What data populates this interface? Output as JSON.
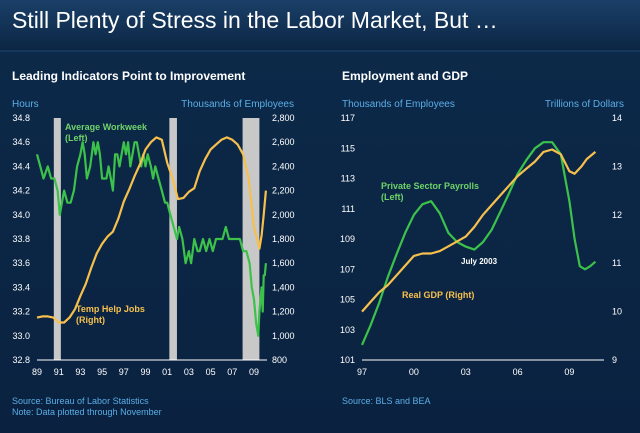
{
  "page": {
    "title": "Still Plenty of Stress in the Labor Market, But …",
    "colors": {
      "background": "#0b2543",
      "green": "#3cc24a",
      "gold": "#f7c04d",
      "blue_text": "#5aaee8",
      "recession": "#c8c8c8"
    }
  },
  "chart_data": [
    {
      "type": "line",
      "title": "Leading Indicators Point to Improvement",
      "left_axis_unit": "Hours",
      "right_axis_unit": "Thousands of Employees",
      "left_ylim": [
        32.8,
        34.8
      ],
      "right_ylim": [
        800,
        2800
      ],
      "left_ticks": [
        "34.8",
        "34.6",
        "34.4",
        "34.2",
        "34.0",
        "33.8",
        "33.6",
        "33.4",
        "33.2",
        "33.0",
        "32.8"
      ],
      "right_ticks": [
        "2,800",
        "2,600",
        "2,400",
        "2,200",
        "2,000",
        "1,800",
        "1,600",
        "1,400",
        "1,200",
        "1,000",
        "800"
      ],
      "x_ticks": [
        "89",
        "91",
        "93",
        "95",
        "97",
        "99",
        "01",
        "03",
        "05",
        "07",
        "09"
      ],
      "xlim": [
        1989,
        2010.2
      ],
      "recessions": [
        [
          1990.55,
          1991.2
        ],
        [
          2001.2,
          2001.9
        ],
        [
          2007.95,
          2009.5
        ]
      ],
      "series": [
        {
          "name": "Average Workweek (Left)",
          "label_line1": "Average Workweek",
          "label_line2": "(Left)",
          "axis": "left",
          "color": "#3cc24a",
          "points": [
            [
              1989.0,
              34.5
            ],
            [
              1989.3,
              34.4
            ],
            [
              1989.6,
              34.3
            ],
            [
              1990.0,
              34.4
            ],
            [
              1990.3,
              34.3
            ],
            [
              1990.6,
              34.3
            ],
            [
              1990.9,
              34.2
            ],
            [
              1991.1,
              34.0
            ],
            [
              1991.5,
              34.2
            ],
            [
              1991.8,
              34.1
            ],
            [
              1992.1,
              34.1
            ],
            [
              1992.4,
              34.2
            ],
            [
              1992.7,
              34.4
            ],
            [
              1993.0,
              34.5
            ],
            [
              1993.2,
              34.6
            ],
            [
              1993.4,
              34.5
            ],
            [
              1993.6,
              34.3
            ],
            [
              1993.9,
              34.4
            ],
            [
              1994.2,
              34.6
            ],
            [
              1994.4,
              34.5
            ],
            [
              1994.6,
              34.6
            ],
            [
              1994.8,
              34.5
            ],
            [
              1995.0,
              34.3
            ],
            [
              1995.2,
              34.3
            ],
            [
              1995.4,
              34.3
            ],
            [
              1995.6,
              34.4
            ],
            [
              1995.8,
              34.3
            ],
            [
              1996.0,
              34.2
            ],
            [
              1996.2,
              34.5
            ],
            [
              1996.4,
              34.5
            ],
            [
              1996.6,
              34.4
            ],
            [
              1996.8,
              34.5
            ],
            [
              1997.0,
              34.6
            ],
            [
              1997.2,
              34.5
            ],
            [
              1997.4,
              34.6
            ],
            [
              1997.6,
              34.4
            ],
            [
              1997.8,
              34.5
            ],
            [
              1998.0,
              34.6
            ],
            [
              1998.2,
              34.6
            ],
            [
              1998.4,
              34.5
            ],
            [
              1998.6,
              34.4
            ],
            [
              1998.8,
              34.5
            ],
            [
              1999.0,
              34.4
            ],
            [
              1999.2,
              34.5
            ],
            [
              1999.5,
              34.4
            ],
            [
              1999.7,
              34.3
            ],
            [
              1999.9,
              34.4
            ],
            [
              2000.2,
              34.3
            ],
            [
              2000.5,
              34.2
            ],
            [
              2000.8,
              34.1
            ],
            [
              2001.0,
              34.1
            ],
            [
              2001.3,
              34.0
            ],
            [
              2001.6,
              33.9
            ],
            [
              2001.9,
              33.8
            ],
            [
              2002.1,
              33.9
            ],
            [
              2002.4,
              33.8
            ],
            [
              2002.7,
              33.6
            ],
            [
              2003.0,
              33.7
            ],
            [
              2003.2,
              33.6
            ],
            [
              2003.5,
              33.8
            ],
            [
              2003.8,
              33.7
            ],
            [
              2004.0,
              33.7
            ],
            [
              2004.3,
              33.8
            ],
            [
              2004.6,
              33.7
            ],
            [
              2004.9,
              33.8
            ],
            [
              2005.2,
              33.7
            ],
            [
              2005.5,
              33.8
            ],
            [
              2005.8,
              33.8
            ],
            [
              2006.1,
              33.8
            ],
            [
              2006.4,
              33.9
            ],
            [
              2006.7,
              33.8
            ],
            [
              2007.0,
              33.8
            ],
            [
              2007.3,
              33.8
            ],
            [
              2007.7,
              33.8
            ],
            [
              2008.0,
              33.7
            ],
            [
              2008.3,
              33.7
            ],
            [
              2008.6,
              33.6
            ],
            [
              2008.8,
              33.4
            ],
            [
              2009.0,
              33.3
            ],
            [
              2009.2,
              33.1
            ],
            [
              2009.4,
              33.0
            ],
            [
              2009.5,
              33.2
            ],
            [
              2009.7,
              33.4
            ],
            [
              2009.8,
              33.2
            ],
            [
              2009.9,
              33.5
            ],
            [
              2010.0,
              33.5
            ],
            [
              2010.1,
              33.6
            ]
          ]
        },
        {
          "name": "Temp Help Jobs (Right)",
          "label_line1": "Temp Help Jobs",
          "label_line2": "(Right)",
          "axis": "right",
          "color": "#f7c04d",
          "points": [
            [
              1989.0,
              1150
            ],
            [
              1989.5,
              1160
            ],
            [
              1990.0,
              1160
            ],
            [
              1990.5,
              1150
            ],
            [
              1991.0,
              1110
            ],
            [
              1991.5,
              1110
            ],
            [
              1992.0,
              1150
            ],
            [
              1992.5,
              1220
            ],
            [
              1993.0,
              1330
            ],
            [
              1993.5,
              1430
            ],
            [
              1994.0,
              1560
            ],
            [
              1994.5,
              1680
            ],
            [
              1995.0,
              1760
            ],
            [
              1995.5,
              1820
            ],
            [
              1996.0,
              1860
            ],
            [
              1996.5,
              1970
            ],
            [
              1997.0,
              2110
            ],
            [
              1997.5,
              2210
            ],
            [
              1998.0,
              2320
            ],
            [
              1998.5,
              2420
            ],
            [
              1999.0,
              2540
            ],
            [
              1999.5,
              2600
            ],
            [
              2000.0,
              2640
            ],
            [
              2000.5,
              2620
            ],
            [
              2001.0,
              2430
            ],
            [
              2001.5,
              2300
            ],
            [
              2002.0,
              2130
            ],
            [
              2002.5,
              2140
            ],
            [
              2003.0,
              2190
            ],
            [
              2003.5,
              2220
            ],
            [
              2004.0,
              2360
            ],
            [
              2004.5,
              2460
            ],
            [
              2005.0,
              2540
            ],
            [
              2005.5,
              2580
            ],
            [
              2006.0,
              2620
            ],
            [
              2006.5,
              2640
            ],
            [
              2007.0,
              2620
            ],
            [
              2007.5,
              2580
            ],
            [
              2008.0,
              2500
            ],
            [
              2008.5,
              2300
            ],
            [
              2009.0,
              1900
            ],
            [
              2009.3,
              1800
            ],
            [
              2009.5,
              1720
            ],
            [
              2009.7,
              1830
            ],
            [
              2009.9,
              2000
            ],
            [
              2010.1,
              2200
            ]
          ]
        }
      ]
    },
    {
      "type": "line",
      "title": "Employment and GDP",
      "left_axis_unit": "Thousands of Employees",
      "right_axis_unit": "Trillions of Dollars",
      "left_ylim": [
        101,
        117
      ],
      "right_ylim": [
        9,
        14
      ],
      "left_ticks": [
        "117",
        "115",
        "113",
        "111",
        "109",
        "107",
        "105",
        "103",
        "101"
      ],
      "right_ticks": [
        "14",
        "13",
        "12",
        "11",
        "10",
        "9"
      ],
      "x_ticks": [
        "97",
        "00",
        "03",
        "06",
        "09"
      ],
      "xlim": [
        1997,
        2011
      ],
      "annotation": "July 2003",
      "series": [
        {
          "name": "Private Sector Payrolls (Left)",
          "label_line1": "Private Sector Payrolls",
          "label_line2": "(Left)",
          "axis": "left",
          "color": "#3cc24a",
          "points": [
            [
              1997.0,
              102
            ],
            [
              1997.5,
              103.3
            ],
            [
              1998.0,
              104.8
            ],
            [
              1998.5,
              106.5
            ],
            [
              1999.0,
              108
            ],
            [
              1999.5,
              109.4
            ],
            [
              2000.0,
              110.6
            ],
            [
              2000.5,
              111.3
            ],
            [
              2001.0,
              111.5
            ],
            [
              2001.5,
              110.7
            ],
            [
              2002.0,
              109.4
            ],
            [
              2002.5,
              108.8
            ],
            [
              2003.0,
              108.5
            ],
            [
              2003.5,
              108.3
            ],
            [
              2004.0,
              108.8
            ],
            [
              2004.5,
              109.6
            ],
            [
              2005.0,
              110.8
            ],
            [
              2005.5,
              112
            ],
            [
              2006.0,
              113.3
            ],
            [
              2006.5,
              114.2
            ],
            [
              2007.0,
              115
            ],
            [
              2007.5,
              115.4
            ],
            [
              2008.0,
              115.4
            ],
            [
              2008.5,
              114.6
            ],
            [
              2009.0,
              111.5
            ],
            [
              2009.3,
              109
            ],
            [
              2009.6,
              107.2
            ],
            [
              2009.9,
              107
            ],
            [
              2010.2,
              107.2
            ],
            [
              2010.5,
              107.5
            ]
          ]
        },
        {
          "name": "Real GDP (Right)",
          "label_line1": "Real GDP (Right)",
          "label_line2": "",
          "axis": "right",
          "color": "#f7c04d",
          "points": [
            [
              1997.0,
              10.0
            ],
            [
              1997.5,
              10.2
            ],
            [
              1998.0,
              10.4
            ],
            [
              1998.5,
              10.55
            ],
            [
              1999.0,
              10.75
            ],
            [
              1999.5,
              10.95
            ],
            [
              2000.0,
              11.15
            ],
            [
              2000.5,
              11.2
            ],
            [
              2001.0,
              11.2
            ],
            [
              2001.5,
              11.25
            ],
            [
              2002.0,
              11.35
            ],
            [
              2002.5,
              11.45
            ],
            [
              2003.0,
              11.55
            ],
            [
              2003.5,
              11.75
            ],
            [
              2004.0,
              12.0
            ],
            [
              2004.5,
              12.2
            ],
            [
              2005.0,
              12.4
            ],
            [
              2005.5,
              12.6
            ],
            [
              2006.0,
              12.8
            ],
            [
              2006.5,
              12.95
            ],
            [
              2007.0,
              13.1
            ],
            [
              2007.5,
              13.3
            ],
            [
              2008.0,
              13.35
            ],
            [
              2008.5,
              13.25
            ],
            [
              2009.0,
              12.9
            ],
            [
              2009.3,
              12.85
            ],
            [
              2009.7,
              13.0
            ],
            [
              2010.0,
              13.15
            ],
            [
              2010.5,
              13.3
            ]
          ]
        }
      ]
    }
  ],
  "sources": {
    "left_line1": "Source: Bureau of Labor Statistics",
    "left_line2": "Note: Data plotted through November",
    "right": "Source: BLS and BEA"
  }
}
